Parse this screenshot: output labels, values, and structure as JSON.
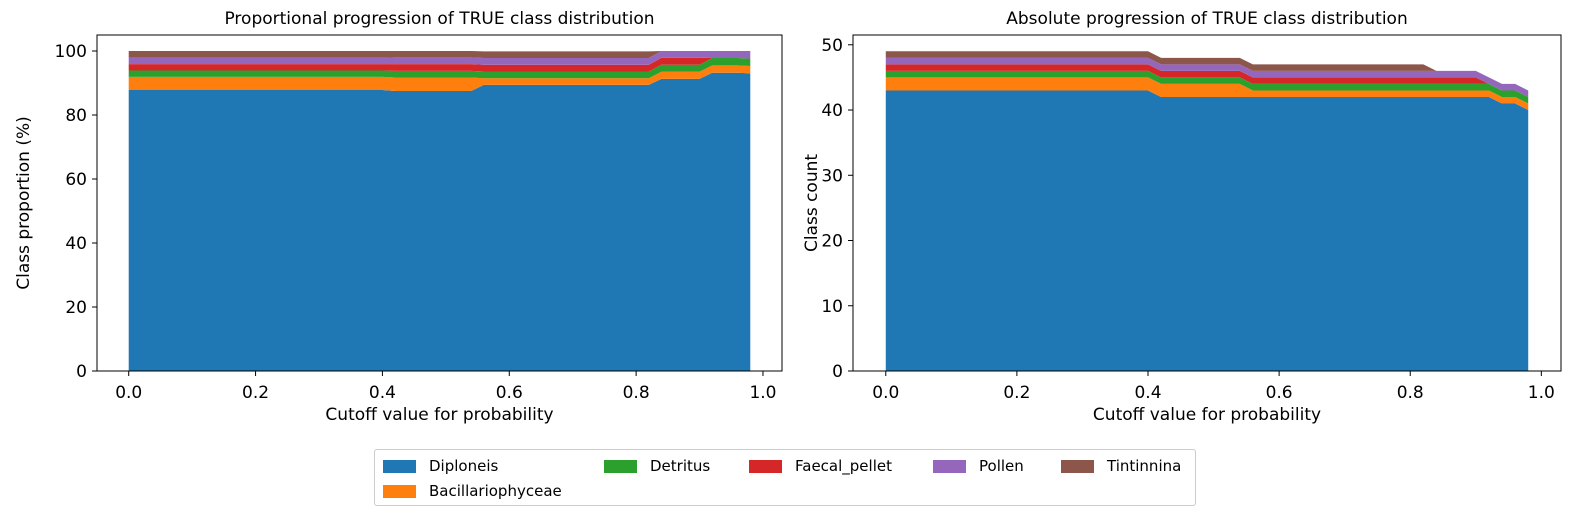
{
  "colors": {
    "Diploneis": "#1f77b4",
    "Bacillariophyceae": "#ff7f0e",
    "Detritus": "#2ca02c",
    "Faecal_pellet": "#d62728",
    "Pollen": "#9467bd",
    "Tintinnina": "#8c564b"
  },
  "legend": {
    "items": [
      "Diploneis",
      "Bacillariophyceae",
      "Detritus",
      "Faecal_pellet",
      "Pollen",
      "Tintinnina"
    ]
  },
  "chart_data": [
    {
      "type": "area",
      "stacked": true,
      "title": "Proportional progression of TRUE class distribution",
      "xlabel": "Cutoff value for probability",
      "ylabel": "Class proportion (%)",
      "xlim": [
        -0.05,
        1.03
      ],
      "ylim": [
        0,
        105
      ],
      "xticks": [
        "0.0",
        "0.2",
        "0.4",
        "0.6",
        "0.8",
        "1.0"
      ],
      "yticks": [
        "0",
        "20",
        "40",
        "60",
        "80",
        "100"
      ],
      "grid": false,
      "x": [
        0.0,
        0.02,
        0.04,
        0.06,
        0.08,
        0.1,
        0.12,
        0.14,
        0.16,
        0.18,
        0.2,
        0.22,
        0.24,
        0.26,
        0.28,
        0.3,
        0.32,
        0.34,
        0.36,
        0.38,
        0.4,
        0.42,
        0.44,
        0.46,
        0.48,
        0.5,
        0.52,
        0.54,
        0.56,
        0.58,
        0.6,
        0.62,
        0.64,
        0.66,
        0.68,
        0.7,
        0.72,
        0.74,
        0.76,
        0.78,
        0.8,
        0.82,
        0.84,
        0.86,
        0.88,
        0.9,
        0.92,
        0.94,
        0.96,
        0.98
      ],
      "series": [
        {
          "name": "Diploneis",
          "values": [
            87.8,
            87.8,
            87.8,
            87.8,
            87.8,
            87.8,
            87.8,
            87.8,
            87.8,
            87.8,
            87.8,
            87.8,
            87.8,
            87.8,
            87.8,
            87.8,
            87.8,
            87.8,
            87.8,
            87.8,
            87.8,
            87.5,
            87.5,
            87.5,
            87.5,
            87.5,
            87.5,
            87.5,
            89.4,
            89.4,
            89.4,
            89.4,
            89.4,
            89.4,
            89.4,
            89.4,
            89.4,
            89.4,
            89.4,
            89.4,
            89.4,
            89.4,
            91.3,
            91.3,
            91.3,
            91.3,
            93.2,
            93.2,
            93.2,
            93.0
          ]
        },
        {
          "name": "Bacillariophyceae",
          "values": [
            4.1,
            4.1,
            4.1,
            4.1,
            4.1,
            4.1,
            4.1,
            4.1,
            4.1,
            4.1,
            4.1,
            4.1,
            4.1,
            4.1,
            4.1,
            4.1,
            4.1,
            4.1,
            4.1,
            4.1,
            4.1,
            4.2,
            4.2,
            4.2,
            4.2,
            4.2,
            4.2,
            4.2,
            2.1,
            2.1,
            2.1,
            2.1,
            2.1,
            2.1,
            2.1,
            2.1,
            2.1,
            2.1,
            2.1,
            2.1,
            2.1,
            2.1,
            2.2,
            2.2,
            2.2,
            2.2,
            2.3,
            2.3,
            2.3,
            2.3
          ]
        },
        {
          "name": "Detritus",
          "values": [
            2.0,
            2.0,
            2.0,
            2.0,
            2.0,
            2.0,
            2.0,
            2.0,
            2.0,
            2.0,
            2.0,
            2.0,
            2.0,
            2.0,
            2.0,
            2.0,
            2.0,
            2.0,
            2.0,
            2.0,
            2.0,
            2.1,
            2.1,
            2.1,
            2.1,
            2.1,
            2.1,
            2.1,
            2.1,
            2.1,
            2.1,
            2.1,
            2.1,
            2.1,
            2.1,
            2.1,
            2.1,
            2.1,
            2.1,
            2.1,
            2.1,
            2.1,
            2.2,
            2.2,
            2.2,
            2.2,
            2.3,
            2.3,
            2.3,
            2.3
          ]
        },
        {
          "name": "Faecal_pellet",
          "values": [
            2.0,
            2.0,
            2.0,
            2.0,
            2.0,
            2.0,
            2.0,
            2.0,
            2.0,
            2.0,
            2.0,
            2.0,
            2.0,
            2.0,
            2.0,
            2.0,
            2.0,
            2.0,
            2.0,
            2.0,
            2.0,
            2.1,
            2.1,
            2.1,
            2.1,
            2.1,
            2.1,
            2.1,
            2.1,
            2.1,
            2.1,
            2.1,
            2.1,
            2.1,
            2.1,
            2.1,
            2.1,
            2.1,
            2.1,
            2.1,
            2.1,
            2.1,
            2.2,
            2.2,
            2.2,
            2.2,
            0.0,
            0.0,
            0.0,
            0.0
          ]
        },
        {
          "name": "Pollen",
          "values": [
            2.0,
            2.0,
            2.0,
            2.0,
            2.0,
            2.0,
            2.0,
            2.0,
            2.0,
            2.0,
            2.0,
            2.0,
            2.0,
            2.0,
            2.0,
            2.0,
            2.0,
            2.0,
            2.0,
            2.0,
            2.0,
            2.1,
            2.1,
            2.1,
            2.1,
            2.1,
            2.1,
            2.1,
            2.1,
            2.1,
            2.1,
            2.1,
            2.1,
            2.1,
            2.1,
            2.1,
            2.1,
            2.1,
            2.1,
            2.1,
            2.1,
            2.1,
            2.1,
            2.1,
            2.1,
            2.1,
            2.2,
            2.2,
            2.2,
            2.4
          ]
        },
        {
          "name": "Tintinnina",
          "values": [
            2.1,
            2.1,
            2.1,
            2.1,
            2.1,
            2.1,
            2.1,
            2.1,
            2.1,
            2.1,
            2.1,
            2.1,
            2.1,
            2.1,
            2.1,
            2.1,
            2.1,
            2.1,
            2.1,
            2.1,
            2.1,
            2.0,
            2.0,
            2.0,
            2.0,
            2.0,
            2.0,
            2.0,
            2.1,
            2.1,
            2.1,
            2.1,
            2.1,
            2.1,
            2.1,
            2.1,
            2.1,
            2.1,
            2.1,
            2.1,
            2.1,
            2.1,
            0.0,
            0.0,
            0.0,
            0.0,
            0.0,
            0.0,
            0.0,
            0.0
          ]
        }
      ]
    },
    {
      "type": "area",
      "stacked": true,
      "title": "Absolute progression of TRUE class distribution",
      "xlabel": "Cutoff value for probability",
      "ylabel": "Class count",
      "xlim": [
        -0.05,
        1.03
      ],
      "ylim": [
        0,
        51.5
      ],
      "xticks": [
        "0.0",
        "0.2",
        "0.4",
        "0.6",
        "0.8",
        "1.0"
      ],
      "yticks": [
        "0",
        "10",
        "20",
        "30",
        "40",
        "50"
      ],
      "grid": false,
      "x": [
        0.0,
        0.02,
        0.04,
        0.06,
        0.08,
        0.1,
        0.12,
        0.14,
        0.16,
        0.18,
        0.2,
        0.22,
        0.24,
        0.26,
        0.28,
        0.3,
        0.32,
        0.34,
        0.36,
        0.38,
        0.4,
        0.42,
        0.44,
        0.46,
        0.48,
        0.5,
        0.52,
        0.54,
        0.56,
        0.58,
        0.6,
        0.62,
        0.64,
        0.66,
        0.68,
        0.7,
        0.72,
        0.74,
        0.76,
        0.78,
        0.8,
        0.82,
        0.84,
        0.86,
        0.88,
        0.9,
        0.92,
        0.94,
        0.96,
        0.98
      ],
      "series": [
        {
          "name": "Diploneis",
          "values": [
            43,
            43,
            43,
            43,
            43,
            43,
            43,
            43,
            43,
            43,
            43,
            43,
            43,
            43,
            43,
            43,
            43,
            43,
            43,
            43,
            43,
            42,
            42,
            42,
            42,
            42,
            42,
            42,
            42,
            42,
            42,
            42,
            42,
            42,
            42,
            42,
            42,
            42,
            42,
            42,
            42,
            42,
            42,
            42,
            42,
            42,
            42,
            41,
            41,
            40
          ]
        },
        {
          "name": "Bacillariophyceae",
          "values": [
            2,
            2,
            2,
            2,
            2,
            2,
            2,
            2,
            2,
            2,
            2,
            2,
            2,
            2,
            2,
            2,
            2,
            2,
            2,
            2,
            2,
            2,
            2,
            2,
            2,
            2,
            2,
            2,
            1,
            1,
            1,
            1,
            1,
            1,
            1,
            1,
            1,
            1,
            1,
            1,
            1,
            1,
            1,
            1,
            1,
            1,
            1,
            1,
            1,
            1
          ]
        },
        {
          "name": "Detritus",
          "values": [
            1,
            1,
            1,
            1,
            1,
            1,
            1,
            1,
            1,
            1,
            1,
            1,
            1,
            1,
            1,
            1,
            1,
            1,
            1,
            1,
            1,
            1,
            1,
            1,
            1,
            1,
            1,
            1,
            1,
            1,
            1,
            1,
            1,
            1,
            1,
            1,
            1,
            1,
            1,
            1,
            1,
            1,
            1,
            1,
            1,
            1,
            1,
            1,
            1,
            1
          ]
        },
        {
          "name": "Faecal_pellet",
          "values": [
            1,
            1,
            1,
            1,
            1,
            1,
            1,
            1,
            1,
            1,
            1,
            1,
            1,
            1,
            1,
            1,
            1,
            1,
            1,
            1,
            1,
            1,
            1,
            1,
            1,
            1,
            1,
            1,
            1,
            1,
            1,
            1,
            1,
            1,
            1,
            1,
            1,
            1,
            1,
            1,
            1,
            1,
            1,
            1,
            1,
            1,
            0,
            0,
            0,
            0
          ]
        },
        {
          "name": "Pollen",
          "values": [
            1,
            1,
            1,
            1,
            1,
            1,
            1,
            1,
            1,
            1,
            1,
            1,
            1,
            1,
            1,
            1,
            1,
            1,
            1,
            1,
            1,
            1,
            1,
            1,
            1,
            1,
            1,
            1,
            1,
            1,
            1,
            1,
            1,
            1,
            1,
            1,
            1,
            1,
            1,
            1,
            1,
            1,
            1,
            1,
            1,
            1,
            1,
            1,
            1,
            1
          ]
        },
        {
          "name": "Tintinnina",
          "values": [
            1,
            1,
            1,
            1,
            1,
            1,
            1,
            1,
            1,
            1,
            1,
            1,
            1,
            1,
            1,
            1,
            1,
            1,
            1,
            1,
            1,
            1,
            1,
            1,
            1,
            1,
            1,
            1,
            1,
            1,
            1,
            1,
            1,
            1,
            1,
            1,
            1,
            1,
            1,
            1,
            1,
            1,
            0,
            0,
            0,
            0,
            0,
            0,
            0,
            0
          ]
        }
      ]
    }
  ]
}
